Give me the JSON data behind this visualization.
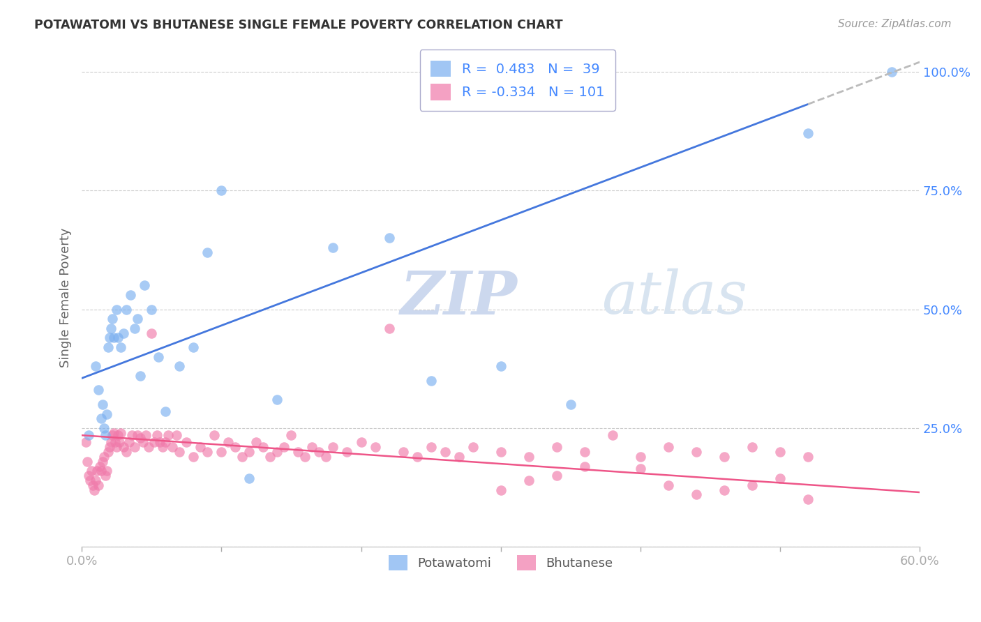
{
  "title": "POTAWATOMI VS BHUTANESE SINGLE FEMALE POVERTY CORRELATION CHART",
  "source": "Source: ZipAtlas.com",
  "ylabel": "Single Female Poverty",
  "xlim": [
    0.0,
    0.6
  ],
  "ylim": [
    0.0,
    1.05
  ],
  "yticks": [
    0.0,
    0.25,
    0.5,
    0.75,
    1.0
  ],
  "ytick_labels": [
    "",
    "25.0%",
    "50.0%",
    "75.0%",
    "100.0%"
  ],
  "xticks": [
    0.0,
    0.1,
    0.2,
    0.3,
    0.4,
    0.5,
    0.6
  ],
  "xtick_labels": [
    "0.0%",
    "",
    "",
    "",
    "",
    "",
    "60.0%"
  ],
  "potawatomi_R": 0.483,
  "potawatomi_N": 39,
  "bhutanese_R": -0.334,
  "bhutanese_N": 101,
  "potawatomi_color": "#7aaff0",
  "bhutanese_color": "#f07aaa",
  "trend_potawatomi_color": "#4477dd",
  "trend_bhutanese_color": "#ee5588",
  "trend_extension_color": "#bbbbbb",
  "watermark_zip_color": "#c8d8f0",
  "watermark_atlas_color": "#c8d8f0",
  "background_color": "#ffffff",
  "grid_color": "#cccccc",
  "axis_color": "#4488ff",
  "title_color": "#333333",
  "blue_trend_x0": 0.0,
  "blue_trend_y0": 0.355,
  "blue_trend_x1": 0.6,
  "blue_trend_y1": 1.02,
  "pink_trend_x0": 0.0,
  "pink_trend_y0": 0.235,
  "pink_trend_x1": 0.6,
  "pink_trend_y1": 0.115,
  "pot_x": [
    0.005,
    0.01,
    0.012,
    0.014,
    0.015,
    0.016,
    0.017,
    0.018,
    0.019,
    0.02,
    0.021,
    0.022,
    0.023,
    0.025,
    0.026,
    0.028,
    0.03,
    0.032,
    0.035,
    0.038,
    0.04,
    0.042,
    0.045,
    0.05,
    0.055,
    0.06,
    0.07,
    0.08,
    0.09,
    0.1,
    0.12,
    0.14,
    0.18,
    0.22,
    0.25,
    0.3,
    0.35,
    0.52,
    0.58
  ],
  "pot_y": [
    0.235,
    0.38,
    0.33,
    0.27,
    0.3,
    0.25,
    0.235,
    0.28,
    0.42,
    0.44,
    0.46,
    0.48,
    0.44,
    0.5,
    0.44,
    0.42,
    0.45,
    0.5,
    0.53,
    0.46,
    0.48,
    0.36,
    0.55,
    0.5,
    0.4,
    0.285,
    0.38,
    0.42,
    0.62,
    0.75,
    0.145,
    0.31,
    0.63,
    0.65,
    0.35,
    0.38,
    0.3,
    0.87,
    1.0
  ],
  "bhu_x": [
    0.003,
    0.004,
    0.005,
    0.006,
    0.007,
    0.008,
    0.009,
    0.01,
    0.011,
    0.012,
    0.013,
    0.014,
    0.015,
    0.016,
    0.017,
    0.018,
    0.019,
    0.02,
    0.021,
    0.022,
    0.023,
    0.024,
    0.025,
    0.026,
    0.027,
    0.028,
    0.03,
    0.032,
    0.034,
    0.036,
    0.038,
    0.04,
    0.042,
    0.044,
    0.046,
    0.048,
    0.05,
    0.052,
    0.054,
    0.056,
    0.058,
    0.06,
    0.062,
    0.065,
    0.068,
    0.07,
    0.075,
    0.08,
    0.085,
    0.09,
    0.095,
    0.1,
    0.105,
    0.11,
    0.115,
    0.12,
    0.125,
    0.13,
    0.135,
    0.14,
    0.145,
    0.15,
    0.155,
    0.16,
    0.165,
    0.17,
    0.175,
    0.18,
    0.19,
    0.2,
    0.21,
    0.22,
    0.23,
    0.24,
    0.25,
    0.26,
    0.27,
    0.28,
    0.3,
    0.32,
    0.34,
    0.36,
    0.38,
    0.4,
    0.42,
    0.44,
    0.46,
    0.48,
    0.5,
    0.52,
    0.3,
    0.32,
    0.34,
    0.36,
    0.4,
    0.42,
    0.44,
    0.46,
    0.48,
    0.5,
    0.52
  ],
  "bhu_y": [
    0.22,
    0.18,
    0.15,
    0.14,
    0.16,
    0.13,
    0.12,
    0.14,
    0.16,
    0.13,
    0.17,
    0.16,
    0.18,
    0.19,
    0.15,
    0.16,
    0.2,
    0.21,
    0.22,
    0.235,
    0.24,
    0.22,
    0.21,
    0.235,
    0.22,
    0.24,
    0.21,
    0.2,
    0.22,
    0.235,
    0.21,
    0.235,
    0.23,
    0.22,
    0.235,
    0.21,
    0.45,
    0.22,
    0.235,
    0.22,
    0.21,
    0.22,
    0.235,
    0.21,
    0.235,
    0.2,
    0.22,
    0.19,
    0.21,
    0.2,
    0.235,
    0.2,
    0.22,
    0.21,
    0.19,
    0.2,
    0.22,
    0.21,
    0.19,
    0.2,
    0.21,
    0.235,
    0.2,
    0.19,
    0.21,
    0.2,
    0.19,
    0.21,
    0.2,
    0.22,
    0.21,
    0.46,
    0.2,
    0.19,
    0.21,
    0.2,
    0.19,
    0.21,
    0.2,
    0.19,
    0.21,
    0.2,
    0.235,
    0.19,
    0.21,
    0.2,
    0.19,
    0.21,
    0.2,
    0.19,
    0.12,
    0.14,
    0.15,
    0.17,
    0.165,
    0.13,
    0.11,
    0.12,
    0.13,
    0.145,
    0.1
  ]
}
